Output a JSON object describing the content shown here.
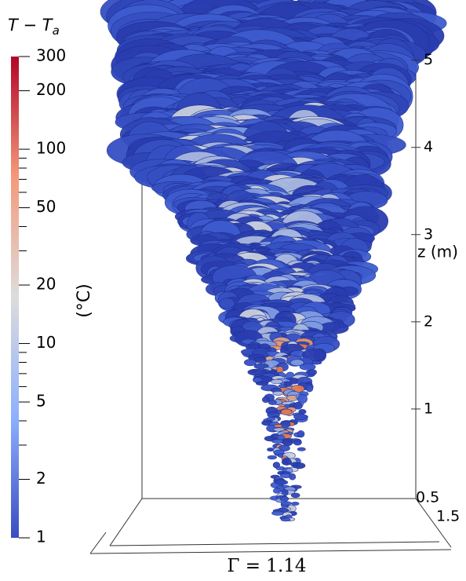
{
  "chart_data": {
    "type": "colorbar",
    "title": "T − T",
    "title_subscript": "a",
    "unit_label": "(°C)",
    "log_scale": true,
    "ylim": [
      1,
      300
    ],
    "yticks": [
      1,
      2,
      5,
      10,
      20,
      50,
      100,
      200,
      300
    ],
    "minor_yticks": [
      3,
      4,
      6,
      7,
      8,
      9,
      30,
      40,
      60,
      70,
      80,
      90
    ],
    "colors": [
      "#3b4cc0",
      "#8db0fe",
      "#dddcdc",
      "#f49a7b",
      "#b40426"
    ],
    "z_axis": {
      "label": "z (m)",
      "zlim": [
        0,
        5.6
      ],
      "zticks": [
        1,
        2,
        3,
        4,
        5
      ]
    },
    "depth_labels": [
      "0.5",
      "1.5"
    ],
    "caption": "Γ = 1.14"
  }
}
